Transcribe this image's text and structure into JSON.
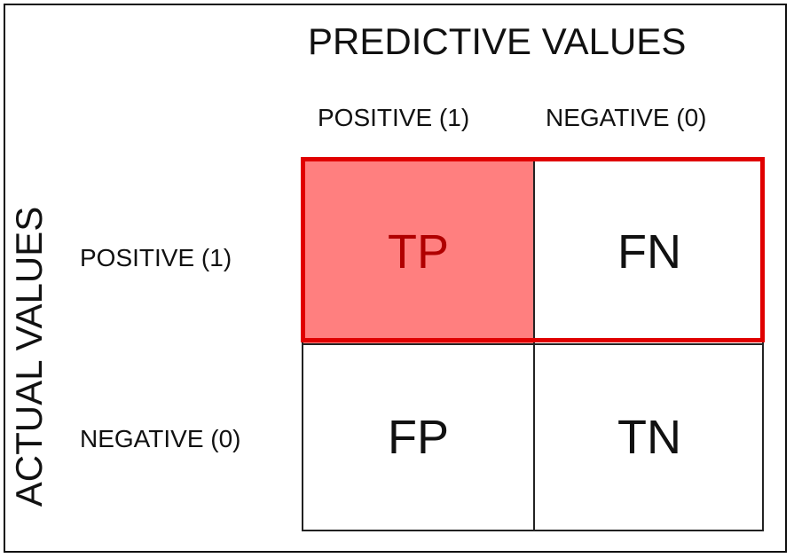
{
  "titles": {
    "predictive": "PREDICTIVE VALUES",
    "actual": "ACTUAL VALUES"
  },
  "columns": {
    "positive": "POSITIVE (1)",
    "negative": "NEGATIVE (0)"
  },
  "rows": {
    "positive": "POSITIVE (1)",
    "negative": "NEGATIVE (0)"
  },
  "cells": {
    "tp": "TP",
    "fn": "FN",
    "fp": "FP",
    "tn": "TN"
  },
  "colors": {
    "highlight_border": "#e00000",
    "highlight_fill": "#ff7f7f",
    "highlight_text": "#b00000"
  }
}
